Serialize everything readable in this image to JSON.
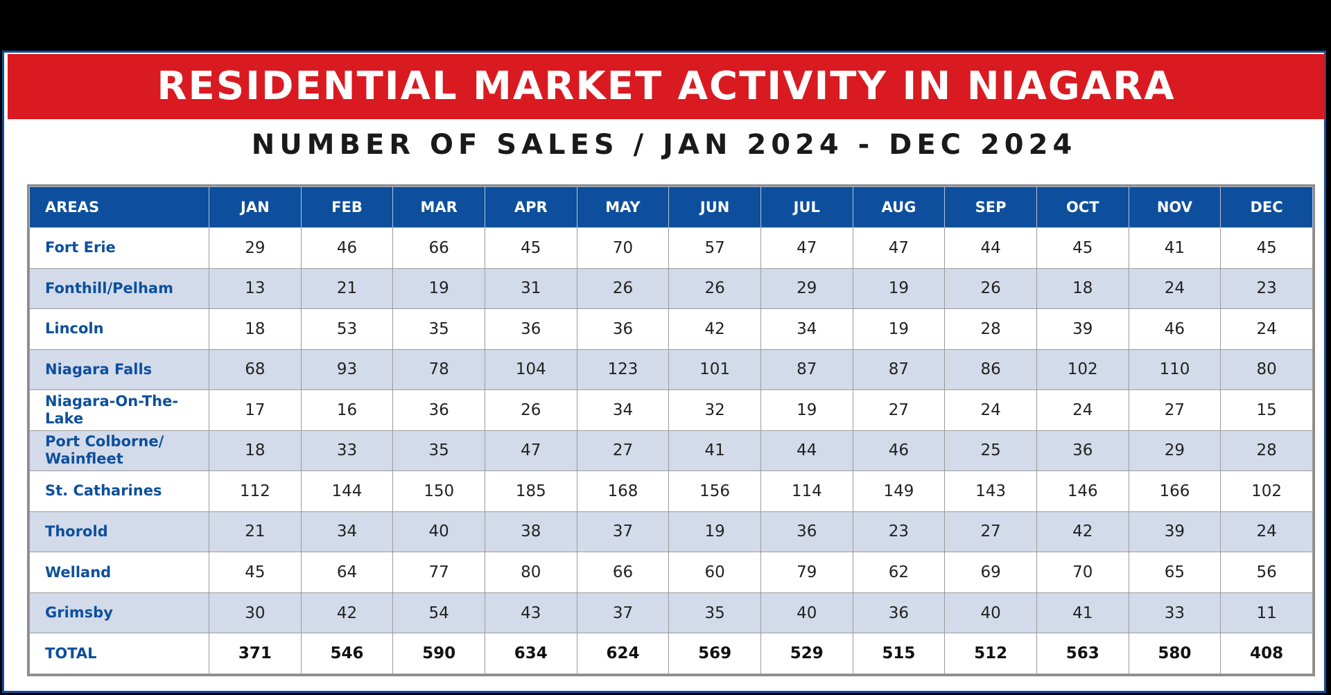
{
  "title": "RESIDENTIAL MARKET ACTIVITY IN NIAGARA",
  "subtitle": "NUMBER OF SALES / JAN 2024 - DEC 2024",
  "chart_data": {
    "type": "table",
    "title": "RESIDENTIAL MARKET ACTIVITY IN NIAGARA",
    "subtitle": "NUMBER OF SALES / JAN 2024 - DEC 2024",
    "header": [
      "AREAS",
      "JAN",
      "FEB",
      "MAR",
      "APR",
      "MAY",
      "JUN",
      "JUL",
      "AUG",
      "SEP",
      "OCT",
      "NOV",
      "DEC"
    ],
    "rows": [
      {
        "area": "Fort Erie",
        "values": [
          "29",
          "46",
          "66",
          "45",
          "70",
          "57",
          "47",
          "47",
          "44",
          "45",
          "41",
          "45"
        ]
      },
      {
        "area": "Fonthill/Pelham",
        "values": [
          "13",
          "21",
          "19",
          "31",
          "26",
          "26",
          "29",
          "19",
          "26",
          "18",
          "24",
          "23"
        ]
      },
      {
        "area": "Lincoln",
        "values": [
          "18",
          "53",
          "35",
          "36",
          "36",
          "42",
          "34",
          "19",
          "28",
          "39",
          "46",
          "24"
        ]
      },
      {
        "area": "Niagara Falls",
        "values": [
          "68",
          "93",
          "78",
          "104",
          "123",
          "101",
          "87",
          "87",
          "86",
          "102",
          "110",
          "80"
        ]
      },
      {
        "area": "Niagara-On-The-Lake",
        "values": [
          "17",
          "16",
          "36",
          "26",
          "34",
          "32",
          "19",
          "27",
          "24",
          "24",
          "27",
          "15"
        ]
      },
      {
        "area": "Port Colborne/ Wainfleet",
        "values": [
          "18",
          "33",
          "35",
          "47",
          "27",
          "41",
          "44",
          "46",
          "25",
          "36",
          "29",
          "28"
        ]
      },
      {
        "area": "St. Catharines",
        "values": [
          "112",
          "144",
          "150",
          "185",
          "168",
          "156",
          "114",
          "149",
          "143",
          "146",
          "166",
          "102"
        ]
      },
      {
        "area": "Thorold",
        "values": [
          "21",
          "34",
          "40",
          "38",
          "37",
          "19",
          "36",
          "23",
          "27",
          "42",
          "39",
          "24"
        ]
      },
      {
        "area": "Welland",
        "values": [
          "45",
          "64",
          "77",
          "80",
          "66",
          "60",
          "79",
          "62",
          "69",
          "70",
          "65",
          "56"
        ]
      },
      {
        "area": "Grimsby",
        "values": [
          "30",
          "42",
          "54",
          "43",
          "37",
          "35",
          "40",
          "36",
          "40",
          "41",
          "33",
          "11"
        ]
      }
    ],
    "total": {
      "area": "TOTAL",
      "values": [
        "371",
        "546",
        "590",
        "634",
        "624",
        "569",
        "529",
        "515",
        "512",
        "563",
        "580",
        "408"
      ]
    }
  },
  "colors": {
    "banner": "#da1a21",
    "header": "#0d4f9c",
    "alt_row": "#d3dbea",
    "area_text": "#0d4f9c"
  }
}
